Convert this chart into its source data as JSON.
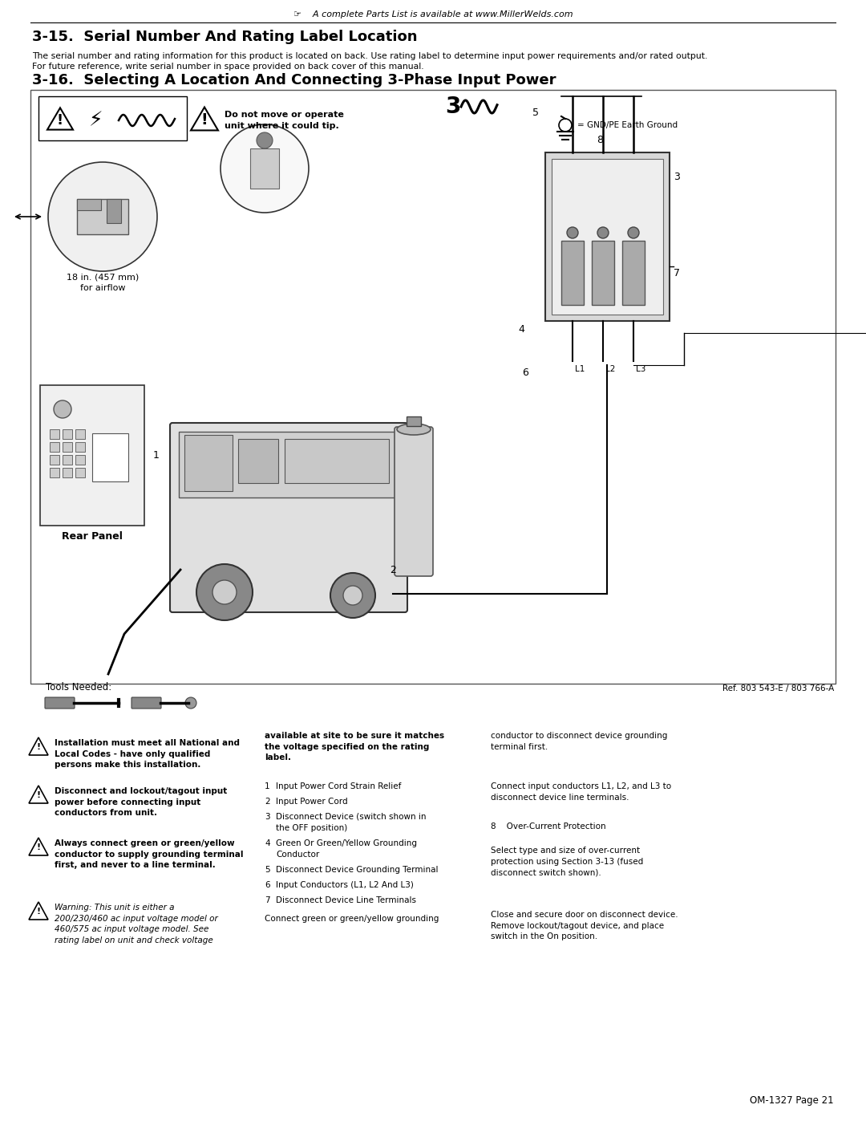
{
  "page_width": 10.8,
  "page_height": 13.97,
  "bg_color": "#ffffff",
  "top_note": "A complete Parts List is available at www.MillerWelds.com",
  "section_315_title": "3-15.  Serial Number And Rating Label Location",
  "section_315_body1": "The serial number and rating information for this product is located on back. Use rating label to determine input power requirements and/or rated output.",
  "section_315_body2": "For future reference, write serial number in space provided on back cover of this manual.",
  "section_316_title": "3-16.  Selecting A Location And Connecting 3-Phase Input Power",
  "warning_text1": "Do not move or operate\nunit where it could tip.",
  "airflow_label": "18 in. (457 mm)\nfor airflow",
  "rear_panel_label": "Rear Panel",
  "tools_needed": "Tools Needed:",
  "ref_label": "Ref. 803 543-E / 803 766-A",
  "page_num": "OM-1327 Page 21",
  "gnd_label": "= GND/PE Earth Ground",
  "warn_col1_title": "Installation must meet all National and\nLocal Codes - have only qualified\npersons make this installation.",
  "warn_col2_title": "Disconnect and lockout/tagout input\npower before connecting input\nconductors from unit.",
  "warn_col3_title": "Always connect green or green/yellow\nconductor to supply grounding terminal\nfirst, and never to a line terminal.",
  "warn_col4_title": "Warning: This unit is either a\n200/230/460 ac input voltage model or\n460/575 ac input voltage model. See\nrating label on unit and check voltage",
  "mid_col_bold": "available at site to be sure it matches\nthe voltage specified on the rating\nlabel.",
  "numbered_items": [
    "Input Power Cord Strain Relief",
    "Input Power Cord",
    "Disconnect Device (switch shown in\nthe OFF position)",
    "Green Or Green/Yellow Grounding\nConductor",
    "Disconnect Device Grounding Terminal",
    "Input Conductors (L1, L2 And L3)",
    "Disconnect Device Line Terminals"
  ],
  "right_col_para1": "conductor to disconnect device grounding\nterminal first.",
  "right_col_para2": "Connect input conductors L1, L2, and L3 to\ndisconnect device line terminals.",
  "item8_label": "8    Over-Current Protection",
  "right_col_para3": "Select type and size of over-current\nprotection using Section 3-13 (fused\ndisconnect switch shown).",
  "right_col_para4": "Close and secure door on disconnect device.\nRemove lockout/tagout device, and place\nswitch in the On position.",
  "connect_para": "Connect green or green/yellow grounding"
}
